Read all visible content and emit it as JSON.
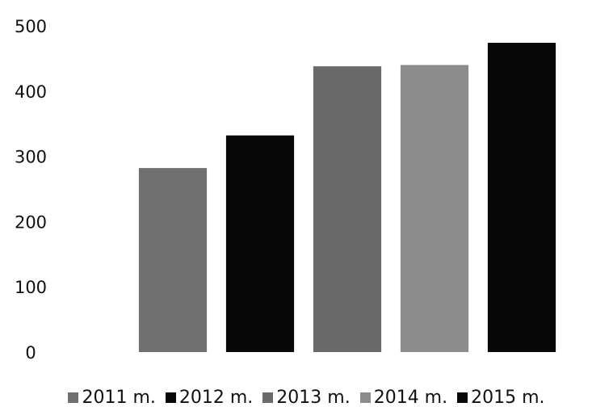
{
  "chart_data": {
    "type": "bar",
    "categories": [
      "2011 m.",
      "2012 m.",
      "2013 m.",
      "2014 m.",
      "2015 m."
    ],
    "values": [
      282,
      332,
      438,
      440,
      474
    ],
    "colors": [
      "#707070",
      "#080808",
      "#6a6a6a",
      "#8c8c8c",
      "#080808"
    ],
    "title": "",
    "xlabel": "",
    "ylabel": "",
    "ylim": [
      0,
      500
    ],
    "yticks": [
      0,
      100,
      200,
      300,
      400,
      500
    ],
    "grid": false,
    "legend_position": "bottom"
  }
}
